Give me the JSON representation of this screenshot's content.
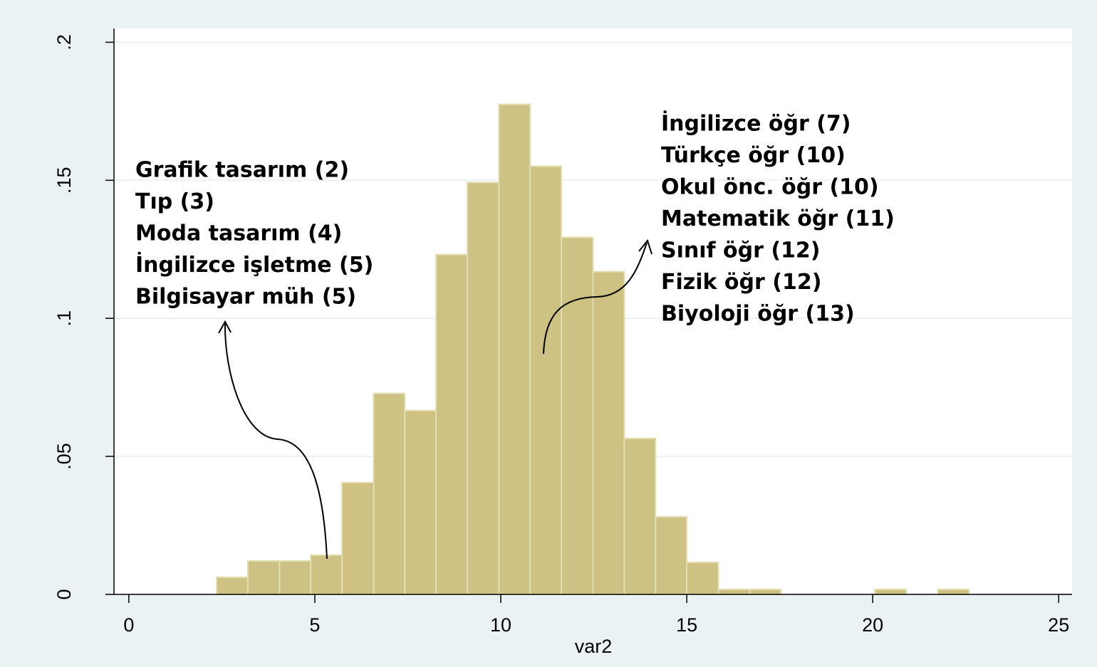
{
  "chart_data": {
    "type": "histogram",
    "xlabel": "var2",
    "bins": [
      2.36,
      3.2,
      4.05,
      4.89,
      5.73,
      6.58,
      7.42,
      8.26,
      9.1,
      9.95,
      10.79,
      11.63,
      12.48,
      13.32,
      14.16,
      15.0,
      15.85,
      16.69,
      17.53,
      18.38,
      19.22,
      20.06,
      20.9,
      21.75,
      22.59
    ],
    "values": [
      0.0062,
      0.0121,
      0.0121,
      0.0142,
      0.0405,
      0.0728,
      0.0666,
      0.1231,
      0.1492,
      0.1775,
      0.1551,
      0.1293,
      0.1169,
      0.0565,
      0.0281,
      0.0116,
      0.0018,
      0.0018,
      0,
      0,
      0,
      0.0018,
      0,
      0.0018
    ],
    "color": "#cdc283",
    "xlim": [
      -0.4,
      25.36
    ],
    "ylim": [
      0,
      0.205
    ],
    "xticks": [
      0,
      5,
      10,
      15,
      20,
      25
    ],
    "yticks": [
      0,
      {
        "value": 0.05,
        "label": ".05"
      },
      {
        "value": 0.1,
        "label": ".1"
      },
      {
        "value": 0.15,
        "label": ".15"
      },
      {
        "value": 0.2,
        "label": ".2"
      }
    ],
    "grid": true,
    "annotations": [
      {
        "lines": [
          "Grafik tasarım (2)",
          "Tıp (3)",
          "Moda tasarım (4)",
          "İngilizce işletme (5)",
          "Bilgisayar müh (5)"
        ]
      },
      {
        "lines": [
          "İngilizce öğr (7)",
          "Türkçe öğr (10)",
          "Okul önc. öğr (10)",
          "Matematik öğr (11)",
          "Sınıf öğr (12)",
          "Fizik öğr (12)",
          "Biyoloji öğr (13)"
        ]
      }
    ]
  }
}
